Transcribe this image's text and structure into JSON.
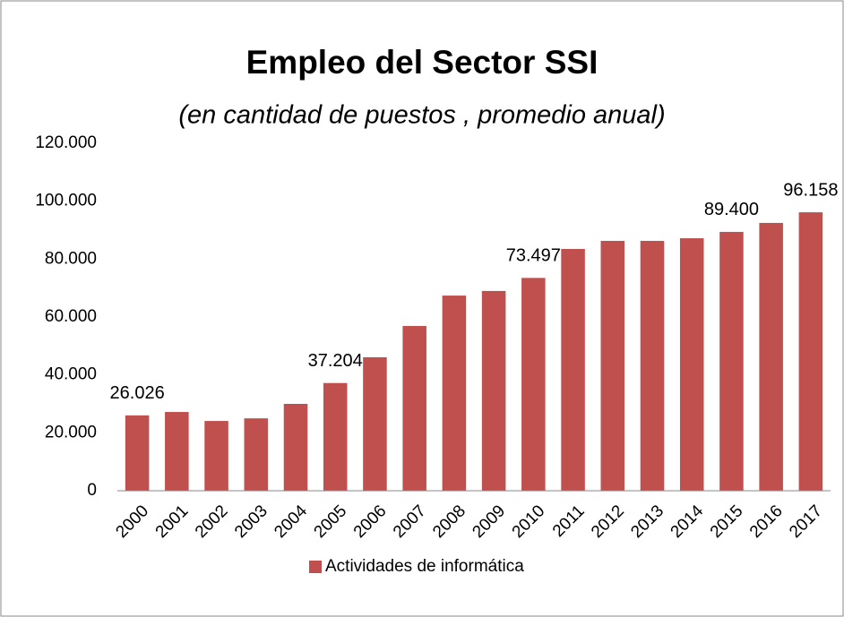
{
  "chart_data": {
    "type": "bar",
    "title": "Empleo del Sector SSI",
    "subtitle": "(en cantidad de puestos , promedio anual)",
    "categories": [
      "2000",
      "2001",
      "2002",
      "2003",
      "2004",
      "2005",
      "2006",
      "2007",
      "2008",
      "2009",
      "2010",
      "2011",
      "2012",
      "2013",
      "2014",
      "2015",
      "2016",
      "2017"
    ],
    "series": [
      {
        "name": "Actividades de informática",
        "color": "#c0504d",
        "values": [
          26026,
          27200,
          24100,
          25000,
          30000,
          37204,
          46100,
          56900,
          67400,
          69000,
          73497,
          83500,
          86300,
          86300,
          87200,
          89400,
          92500,
          96158
        ],
        "value_labels": [
          "26.026",
          null,
          null,
          null,
          null,
          "37.204",
          null,
          null,
          null,
          null,
          "73.497",
          null,
          null,
          null,
          null,
          "89.400",
          null,
          "96.158"
        ]
      }
    ],
    "ylim": [
      0,
      120000
    ],
    "yticks": [
      0,
      {
        "value": 20000,
        "label": "20.000"
      },
      {
        "value": 40000,
        "label": "40.000"
      },
      {
        "value": 60000,
        "label": "60.000"
      },
      {
        "value": 80000,
        "label": "80.000"
      },
      {
        "value": 100000,
        "label": "100.000"
      },
      {
        "value": 120000,
        "label": "120.000"
      }
    ],
    "grid": false,
    "legend": "bottom"
  }
}
